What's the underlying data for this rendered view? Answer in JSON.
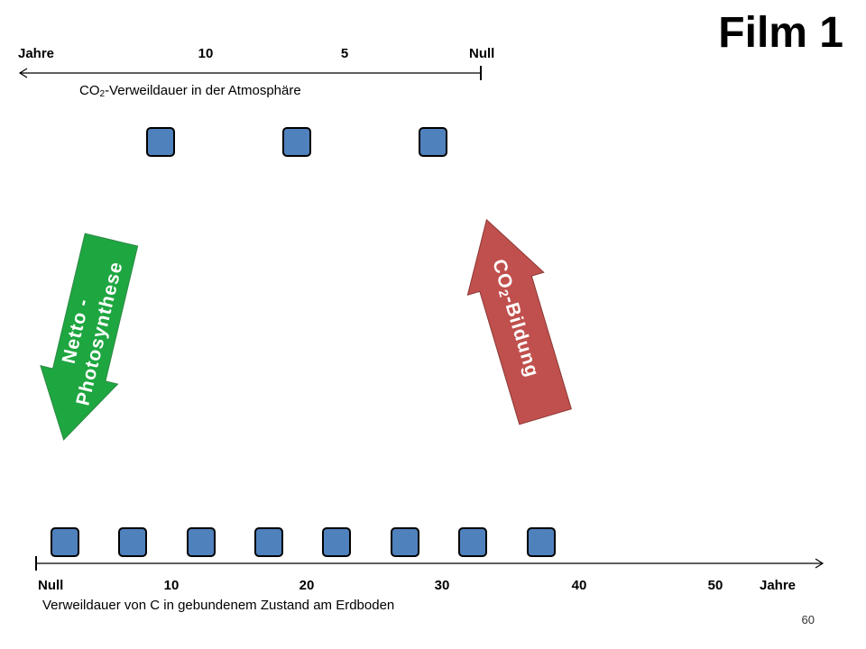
{
  "title": "Film 1",
  "top_axis": {
    "labels": [
      "Jahre",
      "10",
      "5",
      "Null"
    ],
    "caption": [
      "CO",
      "2",
      "-Verweildauer in der Atmosphäre"
    ]
  },
  "arrows": {
    "photosynthesis": [
      "Netto -",
      "Photosynthese"
    ],
    "formation": [
      "CO",
      "2",
      "-Bildung"
    ]
  },
  "bottom_axis": {
    "labels": [
      "Null",
      "10",
      "20",
      "30",
      "40",
      "50",
      "Jahre"
    ],
    "caption": "Verweildauer von C in gebundenem Zustand am Erdboden"
  },
  "page_number": "60"
}
